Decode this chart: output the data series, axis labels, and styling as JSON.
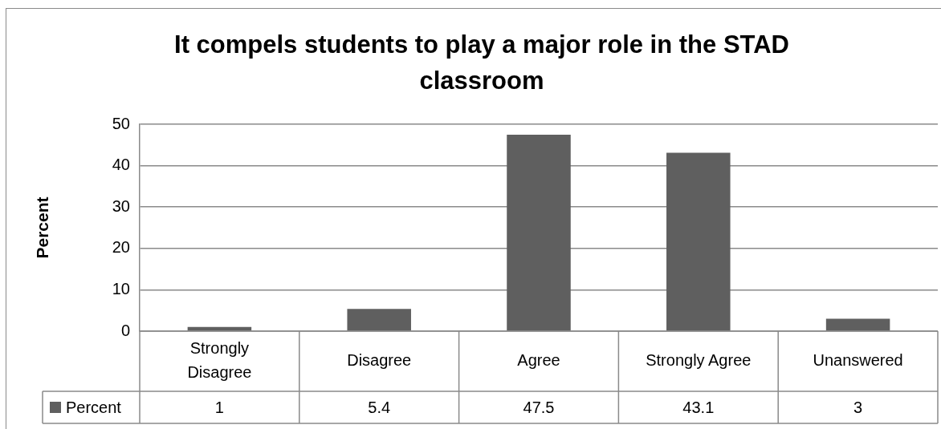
{
  "chart_data": {
    "type": "bar",
    "title": "It compels students to play a major role in the STAD classroom",
    "ylabel": "Percent",
    "categories": [
      "Strongly Disagree",
      "Disagree",
      "Agree",
      "Strongly Agree",
      "Unanswered"
    ],
    "series": [
      {
        "name": "Percent",
        "color": "#5f5f5f",
        "values": [
          1,
          5.4,
          47.5,
          43.1,
          3
        ]
      }
    ],
    "ylim": [
      0,
      50
    ],
    "yticks": [
      0,
      10,
      20,
      30,
      40,
      50
    ],
    "grid": "y",
    "legend": "bottom left",
    "data_labels": true
  }
}
